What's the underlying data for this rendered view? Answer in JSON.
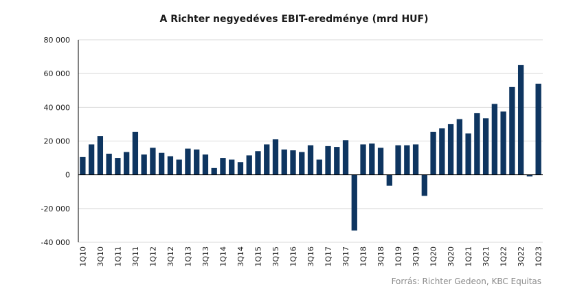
{
  "chart_data": {
    "type": "bar",
    "title": "A Richter negyedéves EBIT-eredménye (mrd HUF)",
    "source": "Forrás: Richter Gedeon, KBC Equitas",
    "bar_color": "#0e3560",
    "ylim": [
      -40000,
      80000
    ],
    "y_ticks": [
      80000,
      60000,
      40000,
      20000,
      0,
      -20000,
      -40000
    ],
    "y_tick_labels": [
      "80 000",
      "60 000",
      "40 000",
      "20 000",
      "0",
      "-20 000",
      "-40 000"
    ],
    "grid": true,
    "categories": [
      "1Q10",
      "2Q10",
      "3Q10",
      "4Q10",
      "1Q11",
      "2Q11",
      "3Q11",
      "4Q11",
      "1Q12",
      "2Q12",
      "3Q12",
      "4Q12",
      "1Q13",
      "2Q13",
      "3Q13",
      "4Q13",
      "1Q14",
      "2Q14",
      "3Q14",
      "4Q14",
      "1Q15",
      "2Q15",
      "3Q15",
      "4Q15",
      "1Q16",
      "2Q16",
      "3Q16",
      "4Q16",
      "1Q17",
      "2Q17",
      "3Q17",
      "4Q17",
      "1Q18",
      "2Q18",
      "3Q18",
      "4Q18",
      "1Q19",
      "2Q19",
      "3Q19",
      "4Q19",
      "1Q20",
      "2Q20",
      "3Q20",
      "4Q20",
      "1Q21",
      "2Q21",
      "3Q21",
      "4Q21",
      "1Q22",
      "2Q22",
      "3Q22",
      "4Q22",
      "1Q23"
    ],
    "x_tick_labels": [
      "1Q10",
      "3Q10",
      "1Q11",
      "3Q11",
      "1Q12",
      "3Q12",
      "1Q13",
      "3Q13",
      "1Q14",
      "3Q14",
      "1Q15",
      "3Q15",
      "1Q16",
      "3Q16",
      "1Q17",
      "3Q17",
      "1Q18",
      "3Q18",
      "1Q19",
      "3Q19",
      "1Q20",
      "3Q20",
      "1Q21",
      "3Q21",
      "1Q22",
      "3Q22",
      "1Q23"
    ],
    "values": [
      10500,
      18000,
      23000,
      12500,
      10000,
      13500,
      25500,
      12000,
      16000,
      13000,
      11000,
      9000,
      15500,
      15000,
      12000,
      4000,
      10000,
      9000,
      7500,
      11500,
      14000,
      18000,
      21000,
      15000,
      14500,
      13500,
      17500,
      9000,
      17000,
      16500,
      20500,
      -33000,
      18000,
      18500,
      16000,
      -6500,
      17500,
      17500,
      18000,
      -12500,
      25500,
      27500,
      30000,
      33000,
      24500,
      36500,
      33500,
      42000,
      37500,
      52000,
      65000,
      -1000,
      54000
    ]
  }
}
